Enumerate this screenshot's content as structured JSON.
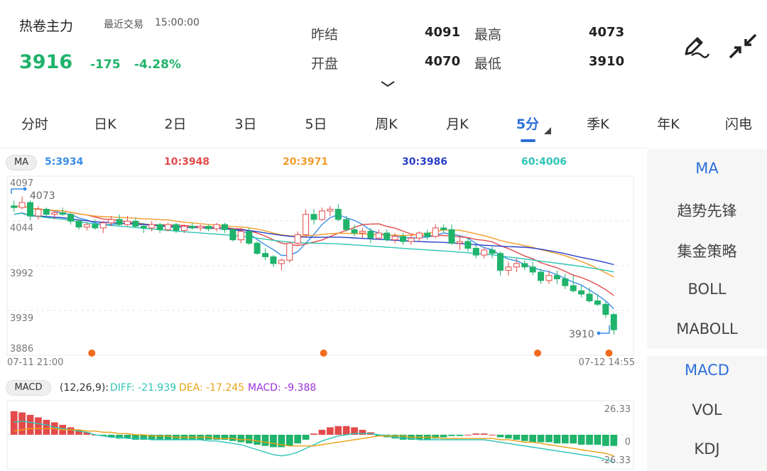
{
  "header": {
    "contract_name": "热卷主力",
    "recent_trade_label": "最近交易",
    "trade_time": "15:00:00",
    "last_price": "3916",
    "change": "-175",
    "change_pct": "-4.28%",
    "stats": {
      "prev_settle_label": "昨结",
      "prev_settle_value": "4091",
      "open_label": "开盘",
      "open_value": "4070",
      "high_label": "最高",
      "high_value": "4073",
      "low_label": "最低",
      "low_value": "3910"
    },
    "icons": [
      "pen-draw-icon",
      "collapse-arrows-icon",
      "chevron-down-icon"
    ]
  },
  "tabs": [
    "分时",
    "日K",
    "2日",
    "3日",
    "5日",
    "周K",
    "月K",
    "5分",
    "季K",
    "年K",
    "闪电"
  ],
  "active_tab": "5分",
  "kline": {
    "indicator_label": "MA",
    "ma_values": [
      {
        "label": "5:3934",
        "color": "#3a8ee6"
      },
      {
        "label": "10:3948",
        "color": "#e34a4a"
      },
      {
        "label": "20:3971",
        "color": "#f39c2b"
      },
      {
        "label": "30:3986",
        "color": "#2a3fc9"
      },
      {
        "label": "60:4006",
        "color": "#2ec4b6"
      }
    ],
    "y_ticks": [
      "4097",
      "4044",
      "3992",
      "3939",
      "3886"
    ],
    "high_marker": "4073",
    "low_marker": "3910",
    "x_start": "07-11 21:00",
    "x_end": "07-12 14:55"
  },
  "macd": {
    "label": "MACD",
    "params": "(12,26,9):",
    "diff": "DIFF: -21.939",
    "dea": "DEA: -17.245",
    "macd_val": "MACD: -9.388",
    "colors": {
      "diff": "#2ec4b6",
      "dea": "#e8a317",
      "macd": "#9b30d9"
    },
    "y_top": "26.33",
    "y_zero": "0",
    "y_bottom": "-26.33"
  },
  "side_panel": {
    "main_indicators": [
      "MA",
      "趋势先锋",
      "集金策略",
      "BOLL",
      "MABOLL"
    ],
    "sub_indicators": [
      "MACD",
      "VOL",
      "KDJ"
    ],
    "active_main": "MA",
    "active_sub": "MACD"
  },
  "chart_data": [
    {
      "type": "candlestick",
      "title": "热卷主力 5分",
      "ylim": [
        3886,
        4097
      ],
      "y_ticks": [
        4097,
        4044,
        3992,
        3939,
        3886
      ],
      "x_range": [
        "07-11 21:00",
        "07-12 14:55"
      ],
      "ohlc": [
        [
          4062,
          4068,
          4055,
          4060
        ],
        [
          4060,
          4073,
          4058,
          4066
        ],
        [
          4066,
          4068,
          4045,
          4050
        ],
        [
          4050,
          4062,
          4046,
          4058
        ],
        [
          4058,
          4060,
          4050,
          4052
        ],
        [
          4052,
          4056,
          4046,
          4054
        ],
        [
          4054,
          4060,
          4050,
          4052
        ],
        [
          4052,
          4054,
          4040,
          4044
        ],
        [
          4044,
          4046,
          4034,
          4037
        ],
        [
          4037,
          4042,
          4033,
          4040
        ],
        [
          4040,
          4046,
          4034,
          4036
        ],
        [
          4036,
          4044,
          4030,
          4042
        ],
        [
          4042,
          4050,
          4038,
          4046
        ],
        [
          4046,
          4052,
          4038,
          4040
        ],
        [
          4040,
          4050,
          4038,
          4044
        ],
        [
          4044,
          4048,
          4036,
          4038
        ],
        [
          4038,
          4042,
          4030,
          4036
        ],
        [
          4036,
          4044,
          4032,
          4040
        ],
        [
          4040,
          4042,
          4030,
          4034
        ],
        [
          4034,
          4042,
          4032,
          4040
        ],
        [
          4040,
          4042,
          4030,
          4033
        ],
        [
          4033,
          4040,
          4030,
          4038
        ],
        [
          4038,
          4042,
          4034,
          4036
        ],
        [
          4036,
          4040,
          4032,
          4038
        ],
        [
          4038,
          4040,
          4032,
          4035
        ],
        [
          4035,
          4042,
          4032,
          4040
        ],
        [
          4040,
          4042,
          4030,
          4034
        ],
        [
          4034,
          4036,
          4020,
          4022
        ],
        [
          4022,
          4036,
          4018,
          4032
        ],
        [
          4032,
          4036,
          4016,
          4018
        ],
        [
          4018,
          4020,
          4004,
          4006
        ],
        [
          4006,
          4012,
          3998,
          4002
        ],
        [
          4002,
          4004,
          3990,
          3994
        ],
        [
          3994,
          4000,
          3986,
          3998
        ],
        [
          3998,
          4020,
          3995,
          4018
        ],
        [
          4018,
          4032,
          4015,
          4028
        ],
        [
          4028,
          4058,
          4026,
          4052
        ],
        [
          4052,
          4058,
          4040,
          4046
        ],
        [
          4046,
          4060,
          4044,
          4056
        ],
        [
          4056,
          4062,
          4050,
          4058
        ],
        [
          4058,
          4064,
          4044,
          4046
        ],
        [
          4046,
          4050,
          4032,
          4034
        ],
        [
          4034,
          4040,
          4026,
          4030
        ],
        [
          4030,
          4036,
          4024,
          4032
        ],
        [
          4032,
          4036,
          4018,
          4024
        ],
        [
          4024,
          4034,
          4022,
          4030
        ],
        [
          4030,
          4034,
          4020,
          4022
        ],
        [
          4022,
          4030,
          4018,
          4026
        ],
        [
          4026,
          4030,
          4016,
          4020
        ],
        [
          4020,
          4028,
          4016,
          4024
        ],
        [
          4024,
          4032,
          4020,
          4030
        ],
        [
          4030,
          4034,
          4022,
          4026
        ],
        [
          4026,
          4040,
          4024,
          4036
        ],
        [
          4036,
          4040,
          4030,
          4034
        ],
        [
          4034,
          4040,
          4016,
          4018
        ],
        [
          4018,
          4026,
          4010,
          4020
        ],
        [
          4020,
          4024,
          4008,
          4012
        ],
        [
          4012,
          4016,
          4000,
          4004
        ],
        [
          4004,
          4012,
          4000,
          4010
        ],
        [
          4010,
          4014,
          4000,
          4006
        ],
        [
          4006,
          4008,
          3980,
          3986
        ],
        [
          3986,
          3996,
          3980,
          3990
        ],
        [
          3990,
          4000,
          3984,
          3994
        ],
        [
          3994,
          3998,
          3986,
          3990
        ],
        [
          3990,
          3996,
          3980,
          3984
        ],
        [
          3984,
          3988,
          3970,
          3974
        ],
        [
          3974,
          3986,
          3970,
          3980
        ],
        [
          3980,
          3986,
          3970,
          3976
        ],
        [
          3976,
          3982,
          3964,
          3968
        ],
        [
          3968,
          3980,
          3960,
          3962
        ],
        [
          3962,
          3968,
          3954,
          3958
        ],
        [
          3958,
          3966,
          3948,
          3950
        ],
        [
          3950,
          3958,
          3944,
          3946
        ],
        [
          3946,
          3950,
          3930,
          3934
        ],
        [
          3934,
          3936,
          3910,
          3916
        ]
      ],
      "signal_markers": [
        3,
        16,
        28,
        32,
        38,
        42
      ]
    },
    {
      "type": "bar",
      "title": "MACD (12,26,9)",
      "ylim": [
        -26.33,
        26.33
      ],
      "series": [
        {
          "name": "MACD",
          "values": [
            19,
            18,
            16,
            14,
            12,
            10,
            8,
            6,
            4,
            2,
            0,
            -1,
            -2,
            -3,
            -3,
            -4,
            -4,
            -4,
            -4,
            -4,
            -4,
            -4,
            -4,
            -4,
            -4,
            -4,
            -4,
            -5,
            -6,
            -7,
            -8,
            -9,
            -10,
            -10,
            -9,
            -7,
            -4,
            1,
            4,
            6,
            7,
            7,
            6,
            4,
            2,
            -1,
            -2,
            -3,
            -4,
            -4,
            -4,
            -4,
            -3,
            -2,
            -1,
            -1,
            0,
            1,
            1,
            0,
            -2,
            -3,
            -4,
            -5,
            -6,
            -6,
            -6,
            -7,
            -7,
            -7,
            -8,
            -8,
            -8,
            -9,
            -9
          ]
        },
        {
          "name": "DIFF",
          "values": [
            10,
            11,
            10,
            9,
            8,
            6,
            5,
            4,
            3,
            2,
            0,
            -1,
            -2,
            -2,
            -3,
            -3,
            -3,
            -4,
            -4,
            -4,
            -4,
            -4,
            -4,
            -4,
            -5,
            -5,
            -6,
            -7,
            -8,
            -10,
            -12,
            -14,
            -16,
            -17,
            -16,
            -14,
            -11,
            -8,
            -5,
            -3,
            -1,
            0,
            1,
            1,
            1,
            0,
            -1,
            -2,
            -3,
            -3,
            -4,
            -4,
            -4,
            -4,
            -4,
            -4,
            -4,
            -4,
            -4,
            -5,
            -6,
            -7,
            -8,
            -9,
            -10,
            -11,
            -12,
            -13,
            -14,
            -15,
            -16,
            -17,
            -18,
            -20,
            -22
          ]
        },
        {
          "name": "DEA",
          "values": [
            3,
            4,
            5,
            5,
            5,
            5,
            4,
            4,
            4,
            3,
            3,
            2,
            2,
            1,
            1,
            0,
            0,
            -1,
            -1,
            -1,
            -2,
            -2,
            -2,
            -2,
            -2,
            -3,
            -3,
            -3,
            -4,
            -4,
            -5,
            -6,
            -7,
            -8,
            -9,
            -9,
            -9,
            -9,
            -8,
            -7,
            -6,
            -5,
            -4,
            -3,
            -2,
            -1,
            -1,
            -1,
            -1,
            -2,
            -2,
            -2,
            -2,
            -3,
            -3,
            -3,
            -3,
            -3,
            -3,
            -3,
            -4,
            -4,
            -5,
            -6,
            -6,
            -7,
            -8,
            -9,
            -10,
            -11,
            -12,
            -13,
            -14,
            -15,
            -17
          ]
        }
      ]
    }
  ]
}
